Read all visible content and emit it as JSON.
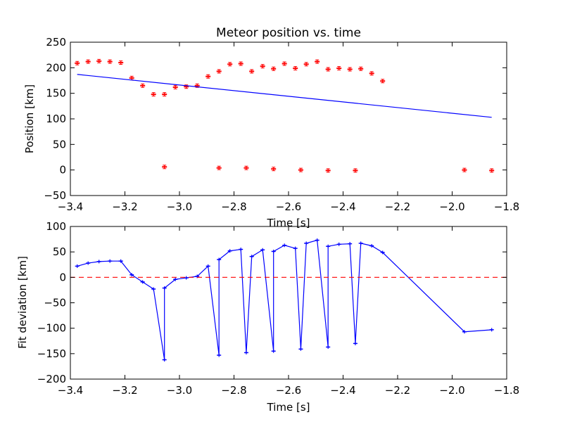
{
  "chart_data": [
    {
      "type": "scatter",
      "title": "Meteor position vs. time",
      "xlabel": "Time [s]",
      "ylabel": "Position [km]",
      "xlim": [
        -3.4,
        -1.8
      ],
      "ylim": [
        -50,
        250
      ],
      "xticks": [
        -3.4,
        -3.2,
        -3.0,
        -2.8,
        -2.6,
        -2.4,
        -2.2,
        -2.0,
        -1.8
      ],
      "yticks": [
        -50,
        0,
        50,
        100,
        150,
        200,
        250
      ],
      "xtick_labels": [
        "−3.4",
        "−3.2",
        "−3.0",
        "−2.8",
        "−2.6",
        "−2.4",
        "−2.2",
        "−2.0",
        "−1.8"
      ],
      "ytick_labels": [
        "−50",
        "0",
        "50",
        "100",
        "150",
        "200",
        "250"
      ],
      "grid": false,
      "series": [
        {
          "kind": "scatter",
          "color": "#ff0000",
          "points": [
            [
              -3.375,
              209
            ],
            [
              -3.335,
              212
            ],
            [
              -3.295,
              213
            ],
            [
              -3.255,
              212
            ],
            [
              -3.215,
              210
            ],
            [
              -3.175,
              180
            ],
            [
              -3.135,
              165
            ],
            [
              -3.095,
              148
            ],
            [
              -3.055,
              148
            ],
            [
              -3.015,
              162
            ],
            [
              -2.975,
              163
            ],
            [
              -2.935,
              165
            ],
            [
              -2.895,
              183
            ],
            [
              -2.855,
              193
            ],
            [
              -2.815,
              207
            ],
            [
              -2.775,
              208
            ],
            [
              -2.735,
              193
            ],
            [
              -2.695,
              203
            ],
            [
              -2.655,
              198
            ],
            [
              -2.615,
              208
            ],
            [
              -2.575,
              199
            ],
            [
              -2.535,
              207
            ],
            [
              -2.495,
              212
            ],
            [
              -2.455,
              197
            ],
            [
              -2.415,
              199
            ],
            [
              -2.375,
              197
            ],
            [
              -2.335,
              198
            ],
            [
              -2.295,
              189
            ],
            [
              -2.255,
              174
            ],
            [
              -3.055,
              6
            ],
            [
              -2.855,
              4
            ],
            [
              -2.755,
              4
            ],
            [
              -2.655,
              2
            ],
            [
              -2.555,
              0
            ],
            [
              -2.455,
              -1
            ],
            [
              -2.355,
              -1
            ],
            [
              -1.955,
              0
            ],
            [
              -1.855,
              -1
            ]
          ]
        },
        {
          "kind": "line",
          "color": "#0000ff",
          "points": [
            [
              -3.375,
              187
            ],
            [
              -1.855,
              103
            ]
          ]
        }
      ]
    },
    {
      "type": "line",
      "title": "",
      "xlabel": "Time [s]",
      "ylabel": "Fit deviation [km]",
      "xlim": [
        -3.4,
        -1.8
      ],
      "ylim": [
        -200,
        100
      ],
      "xticks": [
        -3.4,
        -3.2,
        -3.0,
        -2.8,
        -2.6,
        -2.4,
        -2.2,
        -2.0,
        -1.8
      ],
      "yticks": [
        -200,
        -150,
        -100,
        -50,
        0,
        50,
        100
      ],
      "xtick_labels": [
        "−3.4",
        "−3.2",
        "−3.0",
        "−2.8",
        "−2.6",
        "−2.4",
        "−2.2",
        "−2.0",
        "−1.8"
      ],
      "ytick_labels": [
        "−200",
        "−150",
        "−100",
        "−50",
        "0",
        "50",
        "100"
      ],
      "grid": false,
      "series": [
        {
          "kind": "line",
          "color": "#0000ff",
          "markers": true,
          "points": [
            [
              -3.375,
              22
            ],
            [
              -3.335,
              28
            ],
            [
              -3.295,
              31
            ],
            [
              -3.255,
              32
            ],
            [
              -3.215,
              32
            ],
            [
              -3.175,
              5
            ],
            [
              -3.135,
              -9
            ],
            [
              -3.095,
              -23
            ],
            [
              -3.055,
              -162
            ],
            [
              -3.055,
              -21
            ],
            [
              -3.015,
              -4
            ],
            [
              -2.975,
              -1
            ],
            [
              -2.935,
              2
            ],
            [
              -2.895,
              22
            ],
            [
              -2.855,
              -153
            ],
            [
              -2.855,
              35
            ],
            [
              -2.815,
              52
            ],
            [
              -2.775,
              55
            ],
            [
              -2.755,
              -148
            ],
            [
              -2.735,
              41
            ],
            [
              -2.695,
              54
            ],
            [
              -2.655,
              -145
            ],
            [
              -2.655,
              51
            ],
            [
              -2.615,
              63
            ],
            [
              -2.575,
              57
            ],
            [
              -2.555,
              -141
            ],
            [
              -2.535,
              67
            ],
            [
              -2.495,
              73
            ],
            [
              -2.455,
              -137
            ],
            [
              -2.455,
              61
            ],
            [
              -2.415,
              65
            ],
            [
              -2.375,
              66
            ],
            [
              -2.355,
              -130
            ],
            [
              -2.335,
              67
            ],
            [
              -2.295,
              62
            ],
            [
              -2.255,
              49
            ],
            [
              -1.955,
              -107
            ],
            [
              -1.855,
              -103
            ]
          ]
        },
        {
          "kind": "hline",
          "color": "#ff0000",
          "dashed": true,
          "y": 0
        }
      ]
    }
  ]
}
